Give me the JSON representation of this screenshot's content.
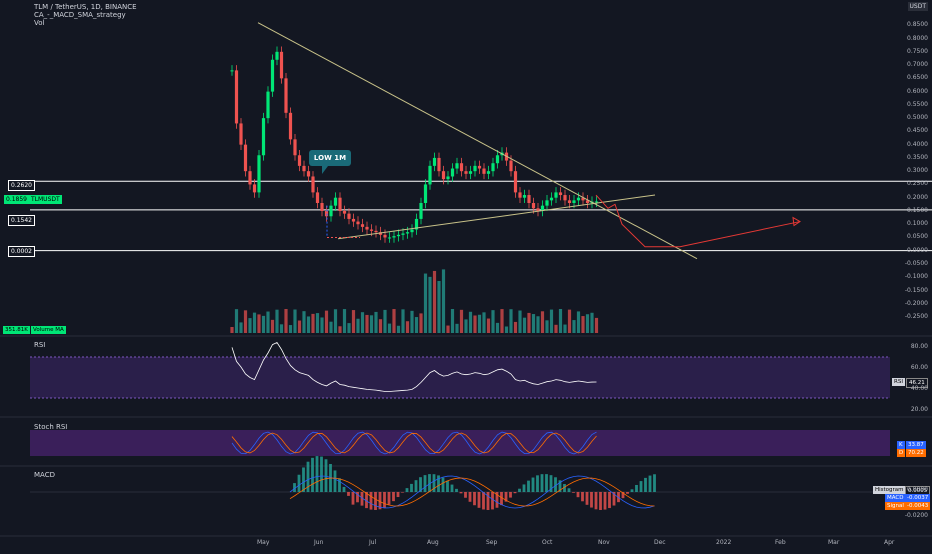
{
  "header": {
    "symbol_line": "TLM / TetherUS, 1D, BINANCE",
    "indicator": "CA_-_MACD_SMA_strategy",
    "volume": "Vol",
    "currency_badge": "USDT"
  },
  "colors": {
    "bg": "#131722",
    "up": "#26a69a",
    "up_bright": "#00e676",
    "down": "#ef5350",
    "trend_line": "#c9c38a",
    "projection": "#e53935",
    "rsi_band": "#2a1f4a",
    "stoch_band": "#3a1f5a",
    "white": "#ffffff"
  },
  "price_axis": {
    "ticks": [
      "0.8500",
      "0.8000",
      "0.7500",
      "0.7000",
      "0.6500",
      "0.6000",
      "0.5500",
      "0.5000",
      "0.4500",
      "0.4000",
      "0.3500",
      "0.3000",
      "0.2500",
      "0.2000",
      "0.1500",
      "0.1000",
      "0.0500",
      "0.0000",
      "-0.0500",
      "-0.1000",
      "-0.1500",
      "-0.2000",
      "-0.2500"
    ],
    "levels": [
      {
        "label": "0.2620",
        "value": 0.262
      },
      {
        "label": "0.1542",
        "value": 0.1542
      },
      {
        "label": "0.0002",
        "value": 0.0002
      }
    ],
    "current_price": "0.1859",
    "current_tag": "TLMUSDT"
  },
  "annotation": {
    "text": "LOW 1M"
  },
  "volume_tags": [
    "351.81K",
    "Volume MA"
  ],
  "rsi": {
    "title": "RSI",
    "ticks": [
      "80.00",
      "60.00",
      "40.00",
      "20.00"
    ],
    "tag": "RSI",
    "value": "46.21"
  },
  "stoch": {
    "title": "Stoch RSI",
    "k_label": "K",
    "k_value": "33.87",
    "d_label": "D",
    "d_value": "70.22"
  },
  "macd": {
    "title": "MACD",
    "ticks": [
      "0.0000",
      "-0.0200"
    ],
    "histogram_label": "Histogram",
    "histogram_value": "0.0005",
    "macd_label": "MACD",
    "macd_value": "-0.0037",
    "signal_label": "Signal",
    "signal_value": "-0.0043"
  },
  "time_axis": [
    "May",
    "Jun",
    "Jul",
    "Aug",
    "Sep",
    "Oct",
    "Nov",
    "Dec",
    "2022",
    "Feb",
    "Mar",
    "Apr"
  ],
  "chart_data": {
    "type": "candlestick",
    "title": "TLM / TetherUS, 1D, BINANCE",
    "ylim": [
      -0.28,
      0.87
    ],
    "close": [
      0.68,
      0.48,
      0.4,
      0.3,
      0.25,
      0.22,
      0.36,
      0.5,
      0.6,
      0.72,
      0.75,
      0.65,
      0.52,
      0.42,
      0.36,
      0.32,
      0.3,
      0.28,
      0.22,
      0.18,
      0.15,
      0.13,
      0.17,
      0.2,
      0.15,
      0.14,
      0.12,
      0.11,
      0.1,
      0.09,
      0.08,
      0.075,
      0.07,
      0.06,
      0.05,
      0.05,
      0.055,
      0.06,
      0.065,
      0.07,
      0.08,
      0.12,
      0.18,
      0.25,
      0.32,
      0.35,
      0.3,
      0.27,
      0.28,
      0.31,
      0.33,
      0.3,
      0.29,
      0.3,
      0.32,
      0.31,
      0.29,
      0.3,
      0.33,
      0.36,
      0.37,
      0.34,
      0.3,
      0.22,
      0.2,
      0.21,
      0.18,
      0.16,
      0.15,
      0.17,
      0.19,
      0.2,
      0.22,
      0.21,
      0.19,
      0.18,
      0.19,
      0.2,
      0.19,
      0.18,
      0.185,
      0.1859
    ]
  }
}
